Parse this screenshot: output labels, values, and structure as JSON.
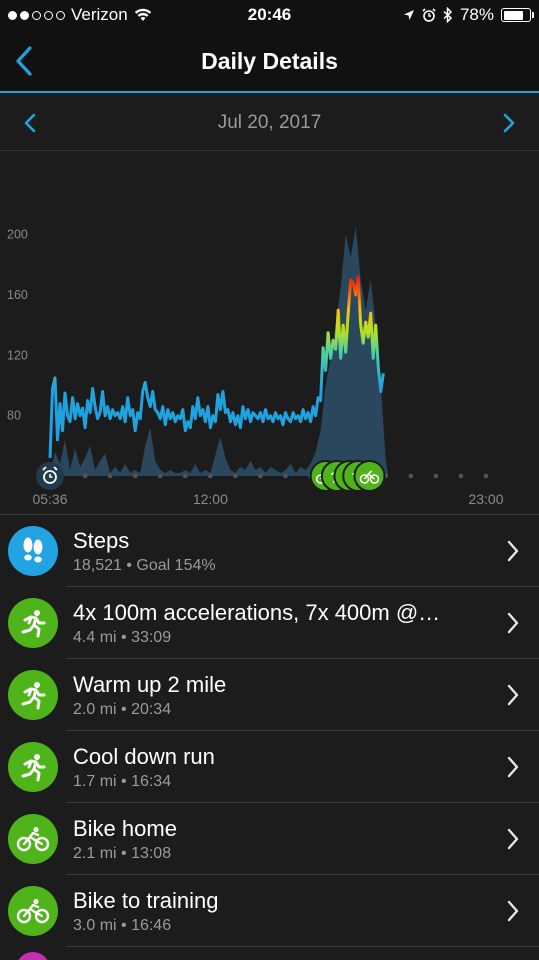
{
  "status_bar": {
    "carrier": "Verizon",
    "time": "20:46",
    "battery": "78%",
    "battery_level": 0.78,
    "signal_bars_filled": 2,
    "signal_bars_total": 5
  },
  "nav": {
    "title": "Daily Details",
    "back_icon": "chevron-left-icon",
    "accent_color": "#1fa3e0"
  },
  "date_nav": {
    "date": "Jul 20, 2017",
    "prev_icon": "chevron-left-icon",
    "next_icon": "chevron-right-icon"
  },
  "chart_data": {
    "type": "area",
    "title": "",
    "xlabel": "",
    "ylabel": "",
    "y_ticks": [
      80,
      120,
      160,
      200
    ],
    "x_tick_labels": [
      "05:36",
      "12:00",
      "23:00"
    ],
    "x_range_hours": [
      5.6,
      23.0
    ],
    "y_range": [
      40,
      215
    ],
    "grid": false,
    "series": [
      {
        "kind": "heart-rate-line",
        "color": "#1fa3e0",
        "points": [
          [
            5.6,
            52
          ],
          [
            5.7,
            98
          ],
          [
            5.8,
            105
          ],
          [
            5.9,
            64
          ],
          [
            6.0,
            88
          ],
          [
            6.1,
            70
          ],
          [
            6.2,
            95
          ],
          [
            6.3,
            80
          ],
          [
            6.4,
            76
          ],
          [
            6.5,
            92
          ],
          [
            6.6,
            78
          ],
          [
            6.7,
            88
          ],
          [
            6.8,
            80
          ],
          [
            6.9,
            85
          ],
          [
            7.0,
            72
          ],
          [
            7.1,
            90
          ],
          [
            7.2,
            82
          ],
          [
            7.3,
            98
          ],
          [
            7.4,
            86
          ],
          [
            7.5,
            78
          ],
          [
            7.6,
            82
          ],
          [
            7.7,
            96
          ],
          [
            7.8,
            80
          ],
          [
            7.9,
            86
          ],
          [
            8.0,
            78
          ],
          [
            8.1,
            84
          ],
          [
            8.2,
            80
          ],
          [
            8.3,
            82
          ],
          [
            8.4,
            78
          ],
          [
            8.5,
            86
          ],
          [
            8.6,
            76
          ],
          [
            8.7,
            92
          ],
          [
            8.8,
            80
          ],
          [
            8.9,
            84
          ],
          [
            9.0,
            70
          ],
          [
            9.1,
            82
          ],
          [
            9.2,
            78
          ],
          [
            9.3,
            96
          ],
          [
            9.4,
            102
          ],
          [
            9.5,
            92
          ],
          [
            9.6,
            86
          ],
          [
            9.7,
            96
          ],
          [
            9.8,
            84
          ],
          [
            9.9,
            82
          ],
          [
            10.0,
            78
          ],
          [
            10.1,
            86
          ],
          [
            10.2,
            74
          ],
          [
            10.3,
            84
          ],
          [
            10.4,
            78
          ],
          [
            10.5,
            82
          ],
          [
            10.6,
            76
          ],
          [
            10.7,
            80
          ],
          [
            10.8,
            78
          ],
          [
            10.9,
            84
          ],
          [
            11.0,
            70
          ],
          [
            11.1,
            76
          ],
          [
            11.2,
            72
          ],
          [
            11.3,
            86
          ],
          [
            11.4,
            78
          ],
          [
            11.5,
            92
          ],
          [
            11.6,
            80
          ],
          [
            11.7,
            84
          ],
          [
            11.8,
            76
          ],
          [
            11.9,
            86
          ],
          [
            12.0,
            72
          ],
          [
            12.1,
            80
          ],
          [
            12.2,
            76
          ],
          [
            12.3,
            94
          ],
          [
            12.4,
            84
          ],
          [
            12.5,
            96
          ],
          [
            12.6,
            82
          ],
          [
            12.7,
            84
          ],
          [
            12.8,
            76
          ],
          [
            12.9,
            82
          ],
          [
            13.0,
            74
          ],
          [
            13.1,
            80
          ],
          [
            13.2,
            72
          ],
          [
            13.3,
            86
          ],
          [
            13.4,
            78
          ],
          [
            13.5,
            84
          ],
          [
            13.6,
            76
          ],
          [
            13.7,
            82
          ],
          [
            13.8,
            80
          ],
          [
            13.9,
            78
          ],
          [
            14.0,
            82
          ],
          [
            14.1,
            76
          ],
          [
            14.2,
            84
          ],
          [
            14.3,
            78
          ],
          [
            14.4,
            80
          ],
          [
            14.5,
            76
          ],
          [
            14.6,
            82
          ],
          [
            14.7,
            78
          ],
          [
            14.8,
            80
          ],
          [
            14.9,
            74
          ],
          [
            15.0,
            82
          ],
          [
            15.1,
            78
          ],
          [
            15.2,
            76
          ],
          [
            15.3,
            82
          ],
          [
            15.4,
            78
          ],
          [
            15.5,
            80
          ],
          [
            15.6,
            76
          ],
          [
            15.7,
            84
          ],
          [
            15.8,
            78
          ],
          [
            15.9,
            82
          ],
          [
            16.0,
            76
          ],
          [
            16.1,
            86
          ],
          [
            16.2,
            80
          ],
          [
            16.3,
            92
          ],
          [
            16.4,
            90
          ],
          [
            16.5,
            125
          ],
          [
            16.6,
            110
          ],
          [
            16.7,
            135
          ],
          [
            16.8,
            118
          ],
          [
            16.9,
            130
          ],
          [
            17.0,
            124
          ],
          [
            17.1,
            150
          ],
          [
            17.2,
            118
          ],
          [
            17.3,
            140
          ],
          [
            17.4,
            122
          ],
          [
            17.5,
            148
          ],
          [
            17.6,
            170
          ],
          [
            17.7,
            168
          ],
          [
            17.8,
            160
          ],
          [
            17.9,
            172
          ],
          [
            18.0,
            140
          ],
          [
            18.1,
            128
          ],
          [
            18.2,
            142
          ],
          [
            18.3,
            132
          ],
          [
            18.4,
            148
          ],
          [
            18.5,
            118
          ],
          [
            18.6,
            140
          ],
          [
            18.7,
            112
          ],
          [
            18.8,
            96
          ],
          [
            18.9,
            108
          ]
        ]
      },
      {
        "kind": "step-activity-area",
        "color": "#2b4a62",
        "points": [
          [
            5.6,
            40
          ],
          [
            5.8,
            56
          ],
          [
            6.0,
            48
          ],
          [
            6.2,
            64
          ],
          [
            6.4,
            44
          ],
          [
            6.6,
            58
          ],
          [
            6.8,
            46
          ],
          [
            7.0,
            52
          ],
          [
            7.2,
            60
          ],
          [
            7.4,
            44
          ],
          [
            7.6,
            50
          ],
          [
            7.8,
            55
          ],
          [
            8.0,
            42
          ],
          [
            8.2,
            46
          ],
          [
            8.4,
            42
          ],
          [
            8.6,
            48
          ],
          [
            8.8,
            42
          ],
          [
            9.0,
            44
          ],
          [
            9.2,
            42
          ],
          [
            9.4,
            60
          ],
          [
            9.6,
            72
          ],
          [
            9.8,
            50
          ],
          [
            10.0,
            44
          ],
          [
            10.2,
            42
          ],
          [
            10.4,
            44
          ],
          [
            10.6,
            42
          ],
          [
            10.8,
            42
          ],
          [
            11.0,
            44
          ],
          [
            11.2,
            42
          ],
          [
            11.4,
            48
          ],
          [
            11.6,
            42
          ],
          [
            11.8,
            44
          ],
          [
            12.0,
            42
          ],
          [
            12.2,
            54
          ],
          [
            12.4,
            66
          ],
          [
            12.6,
            52
          ],
          [
            12.8,
            44
          ],
          [
            13.0,
            42
          ],
          [
            13.2,
            46
          ],
          [
            13.4,
            44
          ],
          [
            13.6,
            50
          ],
          [
            13.8,
            44
          ],
          [
            14.0,
            46
          ],
          [
            14.2,
            42
          ],
          [
            14.4,
            46
          ],
          [
            14.6,
            44
          ],
          [
            14.8,
            42
          ],
          [
            15.0,
            44
          ],
          [
            15.2,
            48
          ],
          [
            15.4,
            42
          ],
          [
            15.6,
            46
          ],
          [
            15.8,
            44
          ],
          [
            16.0,
            48
          ],
          [
            16.2,
            56
          ],
          [
            16.4,
            70
          ],
          [
            16.6,
            100
          ],
          [
            16.8,
            118
          ],
          [
            17.0,
            140
          ],
          [
            17.2,
            165
          ],
          [
            17.4,
            200
          ],
          [
            17.6,
            185
          ],
          [
            17.8,
            205
          ],
          [
            18.0,
            170
          ],
          [
            18.2,
            150
          ],
          [
            18.4,
            170
          ],
          [
            18.6,
            140
          ],
          [
            18.8,
            100
          ],
          [
            19.0,
            50
          ],
          [
            19.1,
            40
          ]
        ]
      }
    ],
    "activity_markers": {
      "color": "#4fb41a",
      "start_icon": "alarm-icon",
      "marker_icons": [
        "bike-icon",
        "run-icon",
        "run-icon",
        "run-icon",
        "bike-icon"
      ],
      "marker_hours": [
        16.6,
        17.05,
        17.55,
        17.9,
        18.35
      ]
    }
  },
  "activities": [
    {
      "icon": "footsteps-icon",
      "color": "#22a4e2",
      "title": "Steps",
      "subtitle": "18,521 • Goal 154%"
    },
    {
      "icon": "run-icon",
      "color": "#4fb41a",
      "title": "4x 100m accelerations, 7x 400m @…",
      "subtitle": "4.4 mi • 33:09"
    },
    {
      "icon": "run-icon",
      "color": "#4fb41a",
      "title": "Warm up 2 mile",
      "subtitle": "2.0 mi • 20:34"
    },
    {
      "icon": "run-icon",
      "color": "#4fb41a",
      "title": "Cool down run",
      "subtitle": "1.7 mi • 16:34"
    },
    {
      "icon": "bike-icon",
      "color": "#4fb41a",
      "title": "Bike home",
      "subtitle": "2.1 mi • 13:08"
    },
    {
      "icon": "bike-icon",
      "color": "#4fb41a",
      "title": "Bike to training",
      "subtitle": "3.0 mi • 16:46"
    }
  ]
}
